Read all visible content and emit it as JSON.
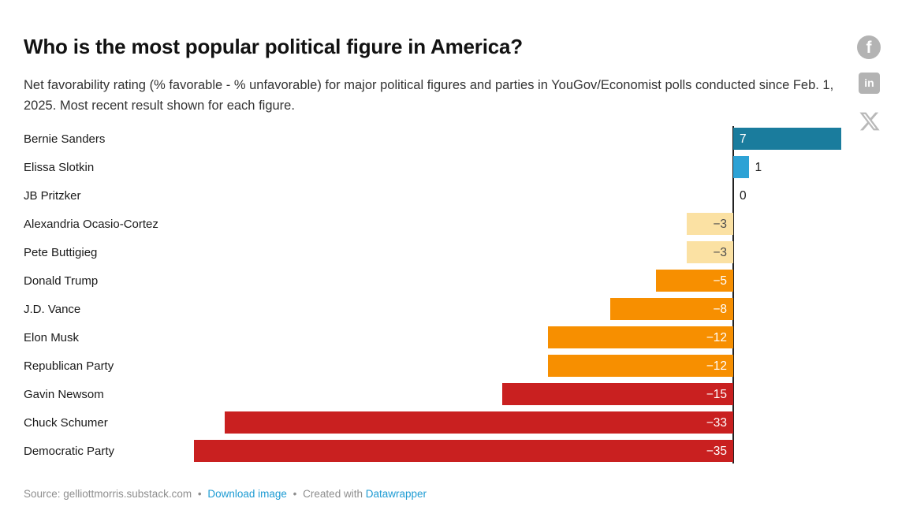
{
  "header": {
    "title": "Who is the most popular political figure in America?",
    "subtitle": "Net favorability rating (% favorable - % unfavorable) for major political figures and parties in YouGov/Economist polls conducted since Feb. 1, 2025. Most recent result shown for each figure."
  },
  "share": {
    "facebook_glyph": "f",
    "linkedin_glyph": "in"
  },
  "chart_data": {
    "type": "bar",
    "orientation": "horizontal",
    "title": "Who is the most popular political figure in America?",
    "xlabel": "",
    "ylabel": "",
    "xlim": [
      -35,
      7
    ],
    "grid": false,
    "zero_baseline": true,
    "categories": [
      "Bernie Sanders",
      "Elissa Slotkin",
      "JB Pritzker",
      "Alexandria Ocasio-Cortez",
      "Pete Buttigieg",
      "Donald Trump",
      "J.D. Vance",
      "Elon Musk",
      "Republican Party",
      "Gavin Newsom",
      "Chuck Schumer",
      "Democratic Party"
    ],
    "values": [
      7,
      1,
      0,
      -3,
      -3,
      -5,
      -8,
      -12,
      -12,
      -15,
      -33,
      -35
    ],
    "formatted_values": [
      "7",
      "1",
      "0",
      "−3",
      "−3",
      "−5",
      "−8",
      "−12",
      "−12",
      "−15",
      "−33",
      "−35"
    ],
    "bar_colors": [
      "#1a7c9d",
      "#2da2d5",
      "none",
      "#fbe1a3",
      "#fbe1a3",
      "#f78f00",
      "#f78f00",
      "#f78f00",
      "#f78f00",
      "#c92020",
      "#c92020",
      "#c92020"
    ],
    "value_text_colors": [
      "#ffffff",
      "#1a1a1a",
      "#1a1a1a",
      "#4d4d4d",
      "#4d4d4d",
      "#ffffff",
      "#ffffff",
      "#ffffff",
      "#ffffff",
      "#ffffff",
      "#ffffff",
      "#ffffff"
    ],
    "value_placements": [
      "inside-left",
      "outside-right",
      "outside-right",
      "inside-right",
      "inside-right",
      "inside-right",
      "inside-right",
      "inside-right",
      "inside-right",
      "inside-right",
      "inside-right",
      "inside-right"
    ]
  },
  "footer": {
    "source": "Source: gelliottmorris.substack.com",
    "separator": "•",
    "download_link": "Download image",
    "created_with": "Created with",
    "brand_link": "Datawrapper"
  },
  "colors": {
    "positive_strong": "#1a7c9d",
    "positive_weak": "#2da2d5",
    "negative_weak": "#fbe1a3",
    "negative_mid": "#f78f00",
    "negative_strong": "#c92020",
    "axis_line": "#202020",
    "link_blue": "#1d9bd3",
    "icon_gray": "#b3b3b3",
    "footer_gray": "#8e8e8e"
  }
}
